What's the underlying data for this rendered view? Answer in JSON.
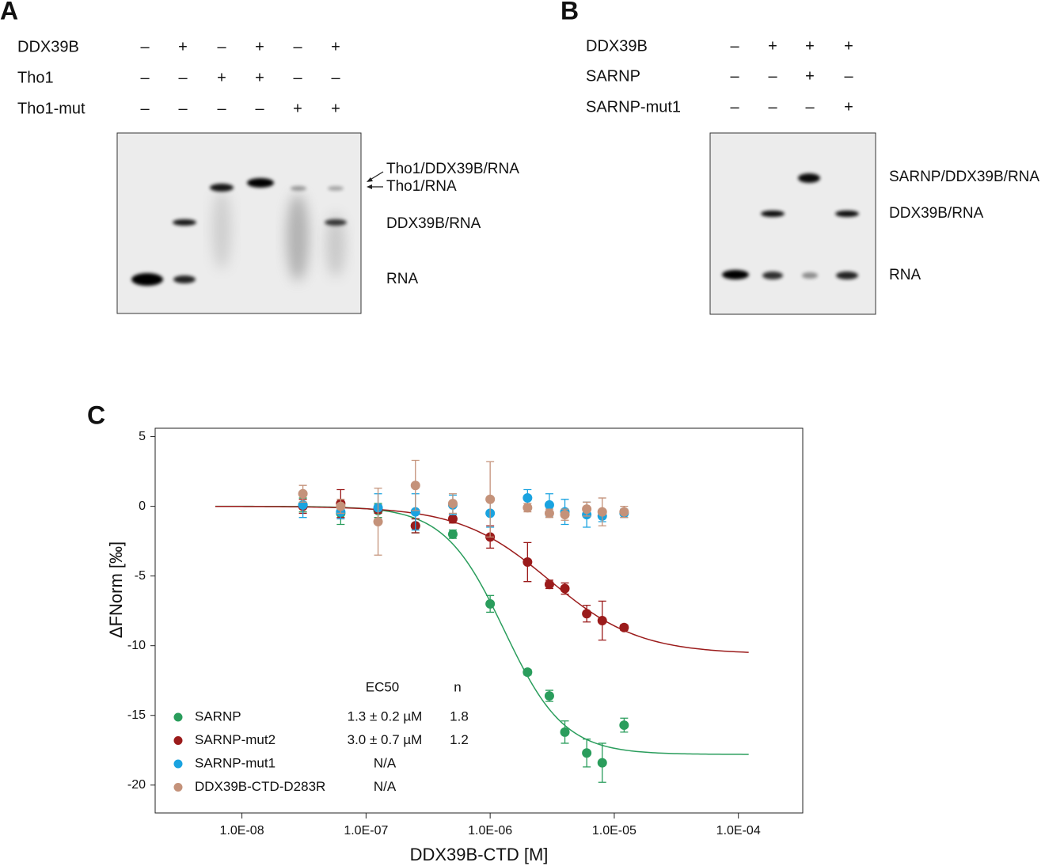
{
  "panel_a": {
    "label": "A",
    "conditions": [
      {
        "name": "DDX39B",
        "lanes": [
          "–",
          "+",
          "–",
          "+",
          "–",
          "+"
        ]
      },
      {
        "name": "Tho1",
        "lanes": [
          "–",
          "–",
          "+",
          "+",
          "–",
          "–"
        ]
      },
      {
        "name": "Tho1-mut",
        "lanes": [
          "–",
          "–",
          "–",
          "–",
          "+",
          "+"
        ]
      }
    ],
    "bands": [
      "Tho1/DDX39B/RNA",
      "Tho1/RNA",
      "DDX39B/RNA",
      "RNA"
    ]
  },
  "panel_b": {
    "label": "B",
    "conditions": [
      {
        "name": "DDX39B",
        "lanes": [
          "–",
          "+",
          "+",
          "+"
        ]
      },
      {
        "name": "SARNP",
        "lanes": [
          "–",
          "–",
          "+",
          "–"
        ]
      },
      {
        "name": "SARNP-mut1",
        "lanes": [
          "–",
          "–",
          "–",
          "+"
        ]
      }
    ],
    "bands": [
      "SARNP/DDX39B/RNA",
      "DDX39B/RNA",
      "RNA"
    ]
  },
  "chart_data": {
    "type": "scatter",
    "panel_label": "C",
    "xlabel": "DDX39B-CTD [M]",
    "ylabel": "ΔFNorm [‰]",
    "xscale": "log",
    "xlim": [
      2e-09,
      0.00033
    ],
    "ylim": [
      -22,
      5.6
    ],
    "xticks": [
      {
        "value": 1e-08,
        "label": "1.0E-08"
      },
      {
        "value": 1e-07,
        "label": "1.0E-07"
      },
      {
        "value": 1e-06,
        "label": "1.0E-06"
      },
      {
        "value": 1e-05,
        "label": "1.0E-05"
      },
      {
        "value": 0.0001,
        "label": "1.0E-04"
      }
    ],
    "yticks": [
      -20,
      -15,
      -10,
      -5,
      0,
      5
    ],
    "x": [
      3.1e-08,
      6.25e-08,
      1.25e-07,
      2.5e-07,
      5e-07,
      1e-06,
      2e-06,
      3e-06,
      4e-06,
      6e-06,
      8e-06,
      1.2e-05
    ],
    "table_headers": [
      "EC50",
      "n"
    ],
    "series": [
      {
        "name": "SARNP",
        "color": "#2a9d5c",
        "ec50": "1.3 ± 0.2 µM",
        "n": "1.8",
        "values": [
          0.1,
          -0.5,
          -0.3,
          -1.4,
          -2.0,
          -7.0,
          -11.9,
          -13.6,
          -16.2,
          -17.7,
          -18.4,
          -15.7
        ],
        "errors": [
          0.5,
          0.8,
          0.5,
          0.5,
          0.3,
          0.6,
          0.2,
          0.4,
          0.8,
          1.0,
          1.4,
          0.5
        ],
        "fit": {
          "bottom": -17.8,
          "ec50": 1.3e-06,
          "hill": 1.8,
          "range": [
            6.1e-09,
            0.000121
          ]
        }
      },
      {
        "name": "SARNP-mut2",
        "color": "#9b1b1b",
        "ec50": "3.0 ± 0.7 µM",
        "n": "1.2",
        "values": [
          0.0,
          0.2,
          -0.2,
          -1.4,
          -0.9,
          -2.2,
          -4.0,
          -5.6,
          -5.9,
          -7.7,
          -8.2,
          -8.7
        ],
        "errors": [
          0.5,
          1.0,
          0.3,
          0.5,
          0.3,
          0.8,
          1.4,
          0.3,
          0.4,
          0.6,
          1.4,
          0.2
        ],
        "fit": {
          "bottom": -10.6,
          "ec50": 3e-06,
          "hill": 1.2,
          "range": [
            6.1e-09,
            0.000121
          ]
        }
      },
      {
        "name": "SARNP-mut1",
        "color": "#1aa3e0",
        "ec50": "N/A",
        "values": [
          0.1,
          -0.4,
          -0.1,
          -0.4,
          0.1,
          -0.5,
          0.6,
          0.1,
          -0.4,
          -0.6,
          -0.7,
          -0.5
        ],
        "errors": [
          0.9,
          0.5,
          1.0,
          1.3,
          0.7,
          1.0,
          0.6,
          0.8,
          0.9,
          0.9,
          0.4,
          0.3
        ]
      },
      {
        "name": "DDX39B-CTD-D283R",
        "color": "#c4927a",
        "ec50": "N/A",
        "values": [
          0.9,
          0.0,
          -1.1,
          1.5,
          0.2,
          0.5,
          -0.1,
          -0.5,
          -0.6,
          -0.2,
          -0.4,
          -0.4
        ],
        "errors": [
          0.6,
          0.5,
          2.4,
          1.8,
          0.7,
          2.7,
          0.3,
          0.3,
          0.4,
          0.5,
          1.0,
          0.4
        ]
      }
    ]
  }
}
